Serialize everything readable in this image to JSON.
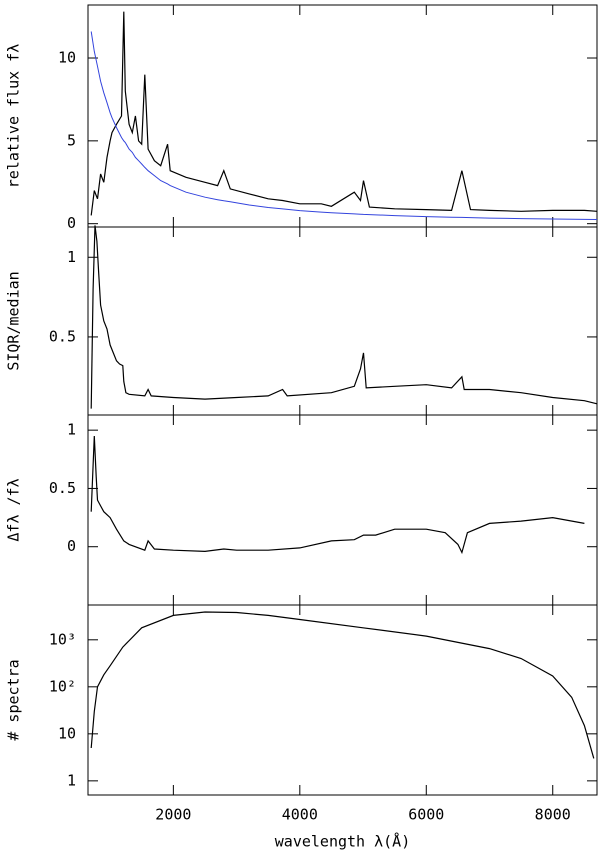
{
  "chart_data": [
    {
      "type": "line",
      "ylabel": "relative flux fλ",
      "x": [
        700,
        750,
        800,
        850,
        900,
        950,
        1000,
        1030,
        1100,
        1180,
        1216,
        1240,
        1300,
        1350,
        1400,
        1450,
        1500,
        1549,
        1600,
        1700,
        1800,
        1909,
        1950,
        2200,
        2500,
        2700,
        2798,
        2900,
        3200,
        3500,
        3727,
        4000,
        4340,
        4500,
        4861,
        4959,
        5007,
        5100,
        5500,
        6000,
        6400,
        6563,
        6700,
        7000,
        7500,
        8000,
        8500,
        8700
      ],
      "series": [
        {
          "color": "#000000",
          "values": [
            0.5,
            2,
            1.5,
            3,
            2.5,
            4,
            5,
            5.5,
            6,
            6.5,
            12.8,
            8,
            6,
            5.5,
            6.5,
            5,
            4.8,
            9,
            4.5,
            3.8,
            3.5,
            4.8,
            3.2,
            2.8,
            2.5,
            2.3,
            3.2,
            2.1,
            1.8,
            1.5,
            1.4,
            1.2,
            1.2,
            1.05,
            1.9,
            1.4,
            2.6,
            1.0,
            0.9,
            0.85,
            0.8,
            3.2,
            0.85,
            0.8,
            0.75,
            0.8,
            0.8,
            0.75
          ]
        },
        {
          "color": "#3344dd",
          "values": [
            11.6,
            10.4,
            9.5,
            8.6,
            7.9,
            7.3,
            6.7,
            6.4,
            5.8,
            5.2,
            5.0,
            4.9,
            4.5,
            4.3,
            4.0,
            3.8,
            3.6,
            3.4,
            3.2,
            2.9,
            2.6,
            2.4,
            2.3,
            1.9,
            1.6,
            1.45,
            1.38,
            1.32,
            1.13,
            0.98,
            0.89,
            0.79,
            0.7,
            0.66,
            0.59,
            0.57,
            0.56,
            0.55,
            0.49,
            0.43,
            0.39,
            0.38,
            0.37,
            0.34,
            0.31,
            0.28,
            0.26,
            0.25
          ]
        }
      ],
      "xlim": [
        650,
        8700
      ],
      "ylim": [
        -0.2,
        13.2
      ],
      "yticks": [
        0,
        5,
        10
      ]
    },
    {
      "type": "line",
      "ylabel": "SIQR/median",
      "x": [
        700,
        730,
        760,
        790,
        820,
        850,
        900,
        950,
        1000,
        1050,
        1100,
        1150,
        1200,
        1216,
        1250,
        1300,
        1549,
        1600,
        1650,
        2000,
        2500,
        3000,
        3500,
        3727,
        3800,
        4500,
        4861,
        4959,
        5007,
        5050,
        5500,
        6000,
        6400,
        6563,
        6600,
        7000,
        7500,
        8000,
        8500,
        8700
      ],
      "series": [
        {
          "color": "#000000",
          "values": [
            0.05,
            0.8,
            1.2,
            1.1,
            0.9,
            0.7,
            0.6,
            0.55,
            0.45,
            0.4,
            0.35,
            0.33,
            0.32,
            0.22,
            0.15,
            0.14,
            0.13,
            0.17,
            0.13,
            0.12,
            0.11,
            0.12,
            0.13,
            0.17,
            0.13,
            0.15,
            0.19,
            0.3,
            0.4,
            0.18,
            0.19,
            0.2,
            0.18,
            0.25,
            0.17,
            0.17,
            0.15,
            0.12,
            0.1,
            0.08
          ]
        }
      ],
      "xlim": [
        650,
        8700
      ],
      "ylim": [
        0.01,
        1.19
      ],
      "yticks": [
        0.5,
        1
      ]
    },
    {
      "type": "line",
      "ylabel": "Δfλ /fλ",
      "x": [
        700,
        750,
        780,
        800,
        850,
        900,
        1000,
        1100,
        1216,
        1300,
        1549,
        1600,
        1700,
        2000,
        2500,
        2798,
        3000,
        3500,
        4000,
        4500,
        4861,
        5007,
        5200,
        5500,
        6000,
        6300,
        6500,
        6563,
        6650,
        7000,
        7500,
        8000,
        8500
      ],
      "series": [
        {
          "color": "#000000",
          "values": [
            0.3,
            0.95,
            0.6,
            0.4,
            0.35,
            0.3,
            0.25,
            0.15,
            0.05,
            0.02,
            -0.03,
            0.05,
            -0.02,
            -0.03,
            -0.04,
            -0.02,
            -0.03,
            -0.03,
            -0.01,
            0.05,
            0.06,
            0.1,
            0.1,
            0.15,
            0.15,
            0.12,
            0.02,
            -0.05,
            0.12,
            0.2,
            0.22,
            0.25,
            0.2
          ]
        }
      ],
      "xlim": [
        650,
        8700
      ],
      "ylim": [
        -0.5,
        1.13
      ],
      "yticks": [
        0,
        0.5,
        1
      ]
    },
    {
      "type": "line",
      "ylabel": "# spectra",
      "xlabel": "wavelength λ(Å)",
      "yscale": "log",
      "x": [
        700,
        750,
        800,
        900,
        1000,
        1200,
        1500,
        2000,
        2500,
        3000,
        3500,
        4000,
        5000,
        6000,
        7000,
        7500,
        8000,
        8300,
        8500,
        8650
      ],
      "series": [
        {
          "color": "#000000",
          "values": [
            5,
            30,
            100,
            180,
            280,
            700,
            1800,
            3300,
            3900,
            3800,
            3300,
            2700,
            1800,
            1200,
            650,
            400,
            170,
            60,
            15,
            3
          ]
        }
      ],
      "xlim": [
        650,
        8700
      ],
      "ylim": [
        0.5,
        5500
      ],
      "yticks": [
        1,
        10,
        {
          "value": 100,
          "label": "10²"
        },
        {
          "value": 1000,
          "label": "10³"
        }
      ],
      "xticks": [
        2000,
        4000,
        6000,
        8000
      ]
    }
  ]
}
